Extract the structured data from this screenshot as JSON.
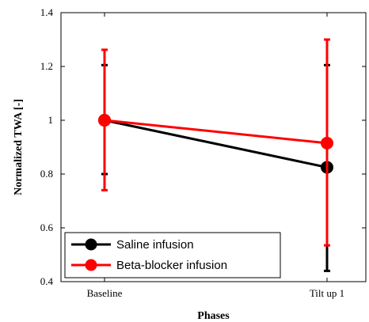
{
  "chart_data": {
    "type": "line",
    "xlabel": "Phases",
    "ylabel": "Normalized TWA [-]",
    "categories": [
      "Baseline",
      "Tilt up 1"
    ],
    "ylim": [
      0.4,
      1.4
    ],
    "yticks": [
      "0.4",
      "0.6",
      "0.8",
      "1",
      "1.2",
      "1.4"
    ],
    "grid": false,
    "legend_position": "bottom-left",
    "series": [
      {
        "name": "Saline infusion",
        "color": "#000000",
        "values": [
          1.0,
          0.825
        ],
        "error_low": [
          0.8,
          0.44
        ],
        "error_high": [
          1.205,
          1.205
        ]
      },
      {
        "name": "Beta-blocker infusion",
        "color": "#ff0000",
        "values": [
          1.0,
          0.915
        ],
        "error_low": [
          0.74,
          0.535
        ],
        "error_high": [
          1.262,
          1.3
        ]
      }
    ]
  }
}
